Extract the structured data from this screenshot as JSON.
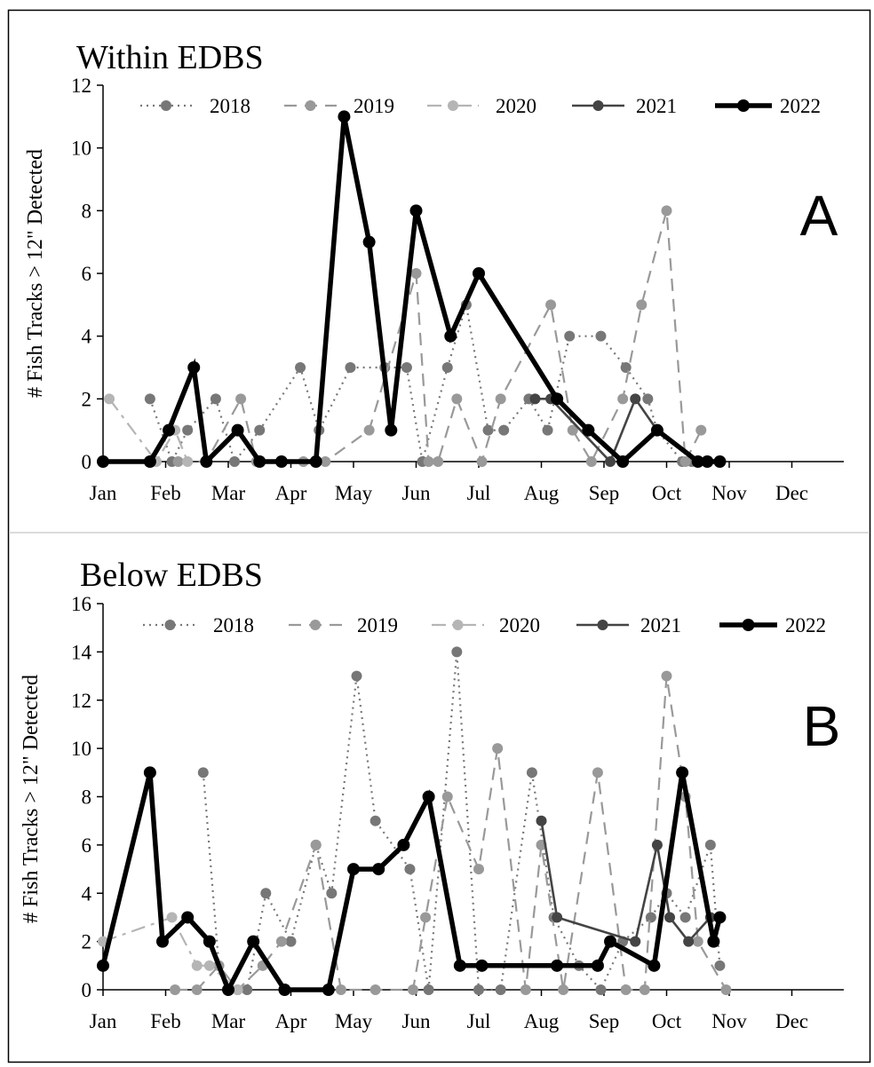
{
  "chart_data": [
    {
      "type": "line",
      "panel_label": "A",
      "title": "Within EDBS",
      "xlabel": "",
      "ylabel": "# Fish Tracks > 12\" Detected",
      "ylim": [
        0,
        12
      ],
      "yticks": [
        0,
        2,
        4,
        6,
        8,
        10,
        12
      ],
      "month_labels": [
        "Jan",
        "Feb",
        "Mar",
        "Apr",
        "May",
        "Jun",
        "Jul",
        "Aug",
        "Sep",
        "Oct",
        "Nov",
        "Dec"
      ],
      "legend": "top",
      "grid": false,
      "series": [
        {
          "name": "2018",
          "color": "#777777",
          "dash": "2,5",
          "width": 2.2,
          "x": [
            1.75,
            2.1,
            2.35,
            2.8,
            3.1,
            3.5,
            4.15,
            4.45,
            4.95,
            5.5,
            5.85,
            6.1,
            6.5,
            6.8,
            7.15,
            7.4,
            7.8,
            8.1,
            8.45,
            8.95,
            9.35,
            9.7,
            9.85,
            10.25,
            10.4,
            10.65
          ],
          "y": [
            2,
            0,
            1,
            2,
            0,
            1,
            3,
            1,
            3,
            3,
            3,
            0,
            3,
            5,
            1,
            1,
            2,
            1,
            4,
            4,
            3,
            2,
            1,
            0,
            0,
            0
          ]
        },
        {
          "name": "2019",
          "color": "#999999",
          "dash": "14,9",
          "width": 2.2,
          "x": [
            2.2,
            2.65,
            3.2,
            3.45,
            4.2,
            4.55,
            5.25,
            6.0,
            6.2,
            6.35,
            6.65,
            7.05,
            7.35,
            8.15,
            8.5,
            8.8,
            9.3,
            9.6,
            10.0,
            10.3,
            10.55
          ],
          "y": [
            0,
            0,
            2,
            0,
            0,
            0,
            1,
            6,
            0,
            0,
            2,
            0,
            2,
            5,
            1,
            0,
            2,
            5,
            8,
            0,
            1
          ]
        },
        {
          "name": "2020",
          "color": "#b5b5b5",
          "dash": "16,7,4,7",
          "width": 2.2,
          "x": [
            1.1,
            1.85,
            2.15,
            2.35
          ],
          "y": [
            2,
            0,
            1,
            0
          ]
        },
        {
          "name": "2021",
          "color": "#444444",
          "dash": "none",
          "width": 2.6,
          "x": [
            7.9,
            8.15,
            9.1,
            9.5,
            9.85
          ],
          "y": [
            2,
            2,
            0,
            2,
            1
          ]
        },
        {
          "name": "2022",
          "color": "#000000",
          "dash": "none",
          "width": 5.5,
          "x": [
            1.0,
            1.75,
            2.05,
            2.45,
            2.65,
            3.15,
            3.5,
            3.85,
            4.4,
            4.85,
            5.25,
            5.6,
            6.0,
            6.55,
            7.0,
            8.25,
            8.75,
            9.3,
            9.85,
            10.5,
            10.65,
            10.85
          ],
          "y": [
            0,
            0,
            1,
            3,
            0,
            1,
            0,
            0,
            0,
            11,
            7,
            1,
            8,
            4,
            6,
            2,
            1,
            0,
            1,
            0,
            0,
            0
          ]
        }
      ]
    },
    {
      "type": "line",
      "panel_label": "B",
      "title": "Below EDBS",
      "xlabel": "",
      "ylabel": "# Fish Tracks > 12\" Detected",
      "ylim": [
        0,
        16
      ],
      "yticks": [
        0,
        2,
        4,
        6,
        8,
        10,
        12,
        14,
        16
      ],
      "month_labels": [
        "Jan",
        "Feb",
        "Mar",
        "Apr",
        "May",
        "Jun",
        "Jul",
        "Aug",
        "Sep",
        "Oct",
        "Nov",
        "Dec"
      ],
      "legend": "top",
      "grid": false,
      "series": [
        {
          "name": "2018",
          "color": "#777777",
          "dash": "2,5",
          "width": 2.2,
          "x": [
            2.6,
            2.85,
            3.0,
            3.3,
            3.6,
            4.0,
            4.4,
            4.65,
            5.05,
            5.35,
            5.9,
            6.2,
            6.65,
            7.0,
            7.35,
            7.85,
            8.2,
            8.6,
            8.95,
            9.3,
            9.75,
            10.0,
            10.3,
            10.7,
            10.85
          ],
          "y": [
            9,
            1,
            0,
            0,
            4,
            2,
            6,
            4,
            13,
            7,
            5,
            0,
            14,
            0,
            0,
            9,
            3,
            1,
            0,
            2,
            3,
            4,
            3,
            6,
            1
          ]
        },
        {
          "name": "2019",
          "color": "#999999",
          "dash": "14,9",
          "width": 2.2,
          "x": [
            2.15,
            2.5,
            2.85,
            3.15,
            3.55,
            3.85,
            4.4,
            4.8,
            5.35,
            5.95,
            6.15,
            6.5,
            7.0,
            7.3,
            7.75,
            8.0,
            8.35,
            8.9,
            9.35,
            9.65,
            10.0,
            10.3,
            10.5,
            10.95
          ],
          "y": [
            0,
            0,
            1,
            0,
            1,
            2,
            6,
            0,
            0,
            0,
            3,
            8,
            5,
            10,
            0,
            6,
            0,
            9,
            0,
            0,
            13,
            8,
            2,
            0
          ]
        },
        {
          "name": "2020",
          "color": "#b5b5b5",
          "dash": "16,7,4,7",
          "width": 2.2,
          "x": [
            1.0,
            2.1,
            2.5,
            2.7,
            3.15
          ],
          "y": [
            2,
            3,
            1,
            1,
            0
          ]
        },
        {
          "name": "2021",
          "color": "#444444",
          "dash": "none",
          "width": 2.6,
          "x": [
            8.0,
            8.25,
            9.5,
            9.85,
            10.05,
            10.35,
            10.7,
            10.85
          ],
          "y": [
            7,
            3,
            2,
            6,
            3,
            2,
            3,
            3
          ]
        },
        {
          "name": "2022",
          "color": "#000000",
          "dash": "none",
          "width": 5.5,
          "x": [
            1.0,
            1.75,
            1.95,
            2.35,
            2.7,
            3.0,
            3.4,
            3.9,
            4.6,
            5.0,
            5.4,
            5.8,
            6.2,
            6.7,
            7.05,
            8.25,
            8.9,
            9.1,
            9.8,
            10.25,
            10.75,
            10.85
          ],
          "y": [
            1,
            9,
            2,
            3,
            2,
            0,
            2,
            0,
            0,
            5,
            5,
            6,
            8,
            1,
            1,
            1,
            1,
            2,
            1,
            9,
            2,
            3
          ]
        }
      ]
    }
  ]
}
